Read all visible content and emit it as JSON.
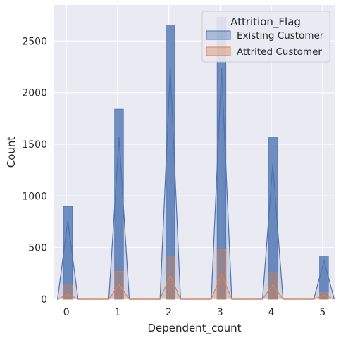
{
  "chart_data": {
    "type": "bar",
    "xlabel": "Dependent_count",
    "ylabel": "Count",
    "xlim": [
      -0.25,
      5.25
    ],
    "ylim": [
      0,
      2850
    ],
    "x_ticks": [
      "0",
      "1",
      "2",
      "3",
      "4",
      "5"
    ],
    "y_ticks": [
      "0",
      "500",
      "1000",
      "1500",
      "2000",
      "2500"
    ],
    "grid": true,
    "legend_position": "top-right",
    "legend_title": "Attrition_Flag",
    "series": [
      {
        "name": "Existing Customer",
        "color": "#4c72b0",
        "x": [
          0,
          1,
          2,
          3,
          4,
          5
        ],
        "values": [
          900,
          1840,
          2655,
          2730,
          1570,
          420
        ],
        "kde_peaks": [
          760,
          1570,
          2240,
          2240,
          1310,
          370
        ]
      },
      {
        "name": "Attrited Customer",
        "color": "#dd8452",
        "x": [
          0,
          1,
          2,
          3,
          4,
          5
        ],
        "values": [
          135,
          270,
          417,
          482,
          260,
          64
        ],
        "kde_peaks": [
          50,
          140,
          230,
          245,
          140,
          40
        ]
      }
    ]
  }
}
